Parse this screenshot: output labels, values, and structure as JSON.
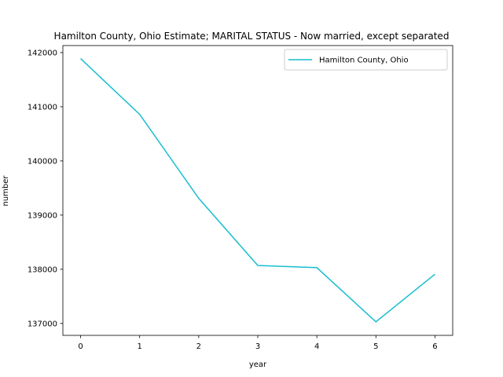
{
  "chart_data": {
    "type": "line",
    "title": "Hamilton County, Ohio Estimate; MARITAL STATUS - Now married, except separated",
    "xlabel": "year",
    "ylabel": "number",
    "x": [
      0,
      1,
      2,
      3,
      4,
      5,
      6
    ],
    "xlim": [
      -0.3,
      6.3
    ],
    "ylim": [
      136780,
      142130
    ],
    "x_ticks": [
      "0",
      "1",
      "2",
      "3",
      "4",
      "5",
      "6"
    ],
    "y_ticks": [
      "137000",
      "138000",
      "139000",
      "140000",
      "141000",
      "142000"
    ],
    "grid": false,
    "legend_position": "top-right",
    "series": [
      {
        "name": "Hamilton County, Ohio",
        "color": "#17becf",
        "values": [
          141890,
          140860,
          139310,
          138070,
          138030,
          137030,
          137910
        ]
      }
    ]
  }
}
